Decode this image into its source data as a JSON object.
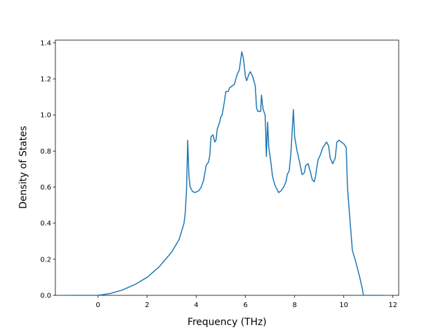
{
  "chart_data": {
    "type": "line",
    "x_label": "Frequency (THz)",
    "y_label": "Density of States",
    "series": [
      {
        "color": "#1f77b4",
        "x": [
          -1.1,
          0,
          0.5,
          1,
          1.5,
          2,
          2.5,
          3,
          3.3,
          3.5,
          3.55,
          3.6,
          3.65,
          3.7,
          3.75,
          3.85,
          3.95,
          4.1,
          4.2,
          4.3,
          4.4,
          4.5,
          4.55,
          4.6,
          4.68,
          4.75,
          4.8,
          4.85,
          4.95,
          5.0,
          5.05,
          5.15,
          5.2,
          5.3,
          5.35,
          5.45,
          5.55,
          5.65,
          5.75,
          5.85,
          5.92,
          6.0,
          6.05,
          6.15,
          6.2,
          6.3,
          6.4,
          6.45,
          6.5,
          6.55,
          6.62,
          6.65,
          6.72,
          6.8,
          6.85,
          6.9,
          6.95,
          7.05,
          7.1,
          7.2,
          7.35,
          7.45,
          7.55,
          7.65,
          7.7,
          7.78,
          7.85,
          7.95,
          8.0,
          8.1,
          8.2,
          8.3,
          8.4,
          8.45,
          8.55,
          8.65,
          8.72,
          8.8,
          8.85,
          8.95,
          9.05,
          9.15,
          9.3,
          9.38,
          9.45,
          9.55,
          9.65,
          9.72,
          9.8,
          9.9,
          10.0,
          10.1,
          10.15,
          10.25,
          10.35,
          10.5,
          10.65,
          10.75,
          10.8,
          11.6
        ],
        "values": [
          0,
          0,
          0.01,
          0.03,
          0.06,
          0.1,
          0.16,
          0.24,
          0.31,
          0.4,
          0.46,
          0.58,
          0.86,
          0.66,
          0.6,
          0.575,
          0.57,
          0.58,
          0.6,
          0.64,
          0.72,
          0.74,
          0.78,
          0.88,
          0.89,
          0.85,
          0.86,
          0.92,
          0.96,
          0.99,
          1.0,
          1.08,
          1.13,
          1.13,
          1.15,
          1.16,
          1.17,
          1.22,
          1.25,
          1.35,
          1.31,
          1.21,
          1.19,
          1.23,
          1.24,
          1.21,
          1.16,
          1.04,
          1.02,
          1.02,
          1.02,
          1.11,
          1.03,
          1.0,
          0.77,
          0.96,
          0.82,
          0.72,
          0.66,
          0.61,
          0.57,
          0.58,
          0.6,
          0.63,
          0.67,
          0.69,
          0.79,
          1.03,
          0.88,
          0.8,
          0.74,
          0.67,
          0.68,
          0.72,
          0.73,
          0.68,
          0.64,
          0.63,
          0.66,
          0.75,
          0.78,
          0.82,
          0.85,
          0.83,
          0.76,
          0.73,
          0.76,
          0.85,
          0.86,
          0.85,
          0.84,
          0.82,
          0.6,
          0.42,
          0.25,
          0.18,
          0.1,
          0.04,
          0,
          0
        ]
      }
    ],
    "xlim": [
      -1.735,
      12.235
    ],
    "xticks": [
      0,
      2,
      4,
      6,
      8,
      10,
      12
    ],
    "ylim": [
      0,
      1.415
    ],
    "yticks": [
      {
        "value": 0,
        "label": "0.0"
      },
      0.2,
      0.4,
      0.6,
      0.8,
      {
        "value": 1,
        "label": "1.0"
      },
      1.2,
      1.4
    ]
  }
}
